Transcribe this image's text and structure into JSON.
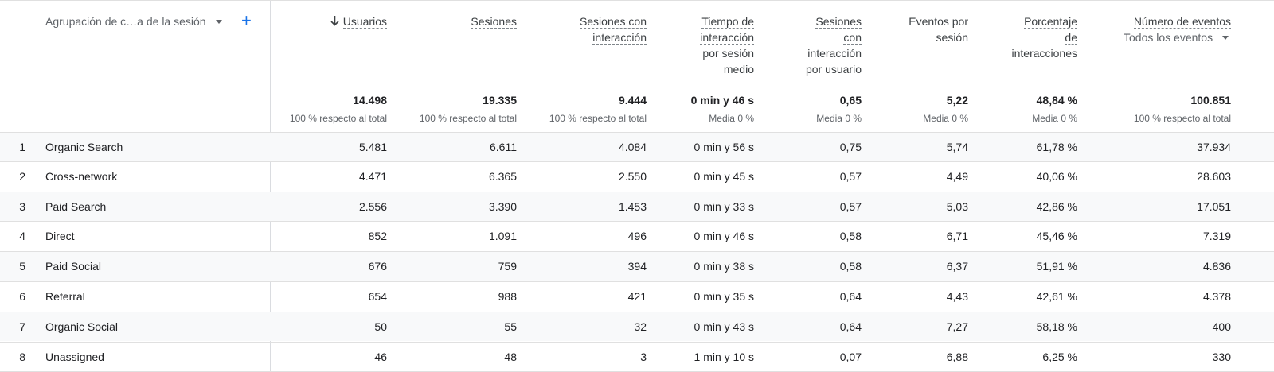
{
  "dimension": {
    "label": "Agrupación de c…a de la sesión"
  },
  "columns": [
    {
      "key": "users",
      "label": "Usuarios",
      "sorted": true
    },
    {
      "key": "sessions",
      "label": "Sesiones"
    },
    {
      "key": "engaged",
      "label": "Sesiones con\ninteracción"
    },
    {
      "key": "time",
      "label": "Tiempo de\ninteracción\npor sesión\nmedio"
    },
    {
      "key": "engaged_per_user",
      "label": "Sesiones\ncon\ninteracción\npor usuario"
    },
    {
      "key": "events_per_session",
      "label": "Eventos por\nsesión"
    },
    {
      "key": "engagement_rate",
      "label": "Porcentaje\nde\ninteracciones"
    },
    {
      "key": "event_count",
      "label": "Número de eventos",
      "sub": "Todos los eventos"
    }
  ],
  "totals": [
    {
      "value": "14.498",
      "sub": "100 % respecto al total"
    },
    {
      "value": "19.335",
      "sub": "100 % respecto al total"
    },
    {
      "value": "9.444",
      "sub": "100 % respecto al total"
    },
    {
      "value": "0 min y 46 s",
      "sub": "Media 0 %"
    },
    {
      "value": "0,65",
      "sub": "Media 0 %"
    },
    {
      "value": "5,22",
      "sub": "Media 0 %"
    },
    {
      "value": "48,84 %",
      "sub": "Media 0 %"
    },
    {
      "value": "100.851",
      "sub": "100 % respecto al total"
    }
  ],
  "rows": [
    {
      "idx": "1",
      "name": "Organic Search",
      "values": [
        "5.481",
        "6.611",
        "4.084",
        "0 min y 56 s",
        "0,75",
        "5,74",
        "61,78 %",
        "37.934"
      ]
    },
    {
      "idx": "2",
      "name": "Cross-network",
      "values": [
        "4.471",
        "6.365",
        "2.550",
        "0 min y 45 s",
        "0,57",
        "4,49",
        "40,06 %",
        "28.603"
      ]
    },
    {
      "idx": "3",
      "name": "Paid Search",
      "values": [
        "2.556",
        "3.390",
        "1.453",
        "0 min y 33 s",
        "0,57",
        "5,03",
        "42,86 %",
        "17.051"
      ]
    },
    {
      "idx": "4",
      "name": "Direct",
      "values": [
        "852",
        "1.091",
        "496",
        "0 min y 46 s",
        "0,58",
        "6,71",
        "45,46 %",
        "7.319"
      ]
    },
    {
      "idx": "5",
      "name": "Paid Social",
      "values": [
        "676",
        "759",
        "394",
        "0 min y 38 s",
        "0,58",
        "6,37",
        "51,91 %",
        "4.836"
      ]
    },
    {
      "idx": "6",
      "name": "Referral",
      "values": [
        "654",
        "988",
        "421",
        "0 min y 35 s",
        "0,64",
        "4,43",
        "42,61 %",
        "4.378"
      ]
    },
    {
      "idx": "7",
      "name": "Organic Social",
      "values": [
        "50",
        "55",
        "32",
        "0 min y 43 s",
        "0,64",
        "7,27",
        "58,18 %",
        "400"
      ]
    },
    {
      "idx": "8",
      "name": "Unassigned",
      "values": [
        "46",
        "48",
        "3",
        "1 min y 10 s",
        "0,07",
        "6,88",
        "6,25 %",
        "330"
      ]
    }
  ],
  "icons": {
    "add": "plus-icon",
    "sort": "arrow-down-icon",
    "dropdown": "caret-down-icon"
  },
  "colors": {
    "accent": "#1a73e8",
    "row_alt": "#f8f9fa"
  }
}
